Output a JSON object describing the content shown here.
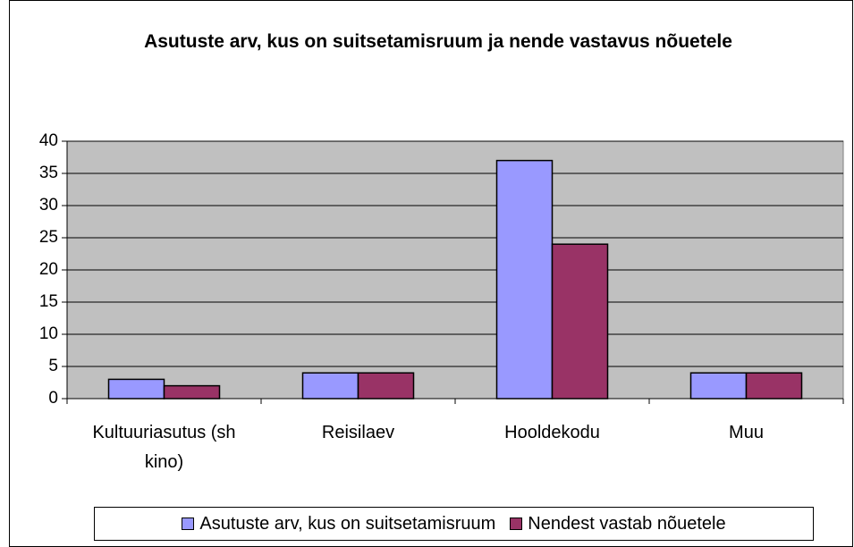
{
  "chart_data": {
    "type": "bar",
    "title": "Asutuste arv, kus on suitsetamisruum ja nende vastavus nõuetele",
    "categories": [
      "Kultuuriasutus (sh kino)",
      "Reisilaev",
      "Hooldekodu",
      "Muu"
    ],
    "series": [
      {
        "name": "Asutuste arv, kus on suitsetamisruum",
        "color": "#9999ff",
        "values": [
          3,
          4,
          37,
          4
        ]
      },
      {
        "name": "Nendest vastab nõuetele",
        "color": "#993366",
        "values": [
          2,
          4,
          24,
          4
        ]
      }
    ],
    "ylim": [
      0,
      40
    ],
    "yticks": [
      0,
      5,
      10,
      15,
      20,
      25,
      30,
      35,
      40
    ],
    "grid": true,
    "legend": "bottom"
  }
}
